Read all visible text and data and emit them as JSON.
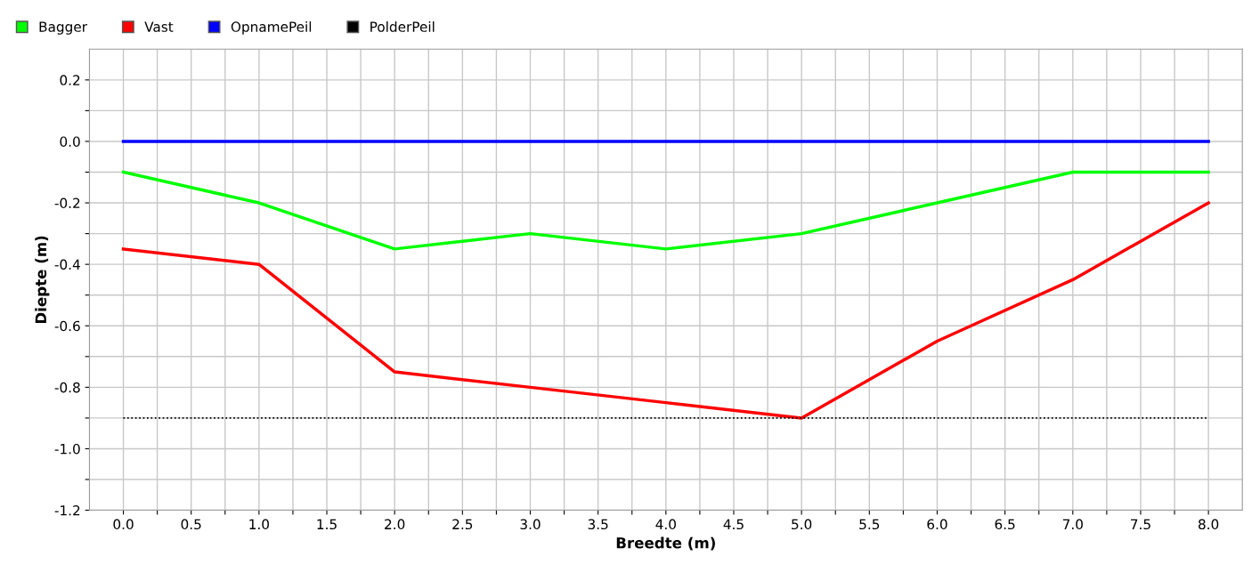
{
  "chart_data": {
    "type": "line",
    "xlabel": "Breedte (m)",
    "ylabel": "Diepte (m)",
    "x": [
      0,
      1,
      2,
      3,
      4,
      5,
      6,
      7,
      8
    ],
    "series": [
      {
        "name": "Bagger",
        "color": "#00ff00",
        "values": [
          -0.1,
          -0.2,
          -0.35,
          -0.3,
          -0.35,
          -0.3,
          -0.2,
          -0.1,
          -0.1
        ]
      },
      {
        "name": "Vast",
        "color": "#ff0000",
        "values": [
          -0.35,
          -0.4,
          -0.75,
          -0.8,
          -0.85,
          -0.9,
          -0.65,
          -0.45,
          -0.2
        ]
      },
      {
        "name": "OpnamePeil",
        "color": "#0000ff",
        "values": [
          0,
          0,
          0,
          0,
          0,
          0,
          0,
          0,
          0
        ]
      },
      {
        "name": "PolderPeil",
        "color": "#000000",
        "line_style": "dotted",
        "values": [
          -0.9,
          -0.9,
          -0.9,
          -0.9,
          -0.9,
          -0.9,
          -0.9,
          -0.9,
          -0.9
        ]
      }
    ],
    "xlim": [
      -0.25,
      8.25
    ],
    "ylim": [
      -1.2,
      0.3
    ],
    "xticks": [
      {
        "value": 0,
        "label": "0.0"
      },
      {
        "value": 0.25,
        "label": null
      },
      {
        "value": 0.5,
        "label": "0.5"
      },
      {
        "value": 0.75,
        "label": null
      },
      {
        "value": 1,
        "label": "1.0"
      },
      {
        "value": 1.25,
        "label": null
      },
      {
        "value": 1.5,
        "label": "1.5"
      },
      {
        "value": 1.75,
        "label": null
      },
      {
        "value": 2,
        "label": "2.0"
      },
      {
        "value": 2.25,
        "label": null
      },
      {
        "value": 2.5,
        "label": "2.5"
      },
      {
        "value": 2.75,
        "label": null
      },
      {
        "value": 3,
        "label": "3.0"
      },
      {
        "value": 3.25,
        "label": null
      },
      {
        "value": 3.5,
        "label": "3.5"
      },
      {
        "value": 3.75,
        "label": null
      },
      {
        "value": 4,
        "label": "4.0"
      },
      {
        "value": 4.25,
        "label": null
      },
      {
        "value": 4.5,
        "label": "4.5"
      },
      {
        "value": 4.75,
        "label": null
      },
      {
        "value": 5,
        "label": "5.0"
      },
      {
        "value": 5.25,
        "label": null
      },
      {
        "value": 5.5,
        "label": "5.5"
      },
      {
        "value": 5.75,
        "label": null
      },
      {
        "value": 6,
        "label": "6.0"
      },
      {
        "value": 6.25,
        "label": null
      },
      {
        "value": 6.5,
        "label": "6.5"
      },
      {
        "value": 6.75,
        "label": null
      },
      {
        "value": 7,
        "label": "7.0"
      },
      {
        "value": 7.25,
        "label": null
      },
      {
        "value": 7.5,
        "label": "7.5"
      },
      {
        "value": 7.75,
        "label": null
      },
      {
        "value": 8,
        "label": "8.0"
      }
    ],
    "yticks": [
      {
        "value": -1.2,
        "label": "-1.2"
      },
      {
        "value": -1.1,
        "label": null
      },
      {
        "value": -1.0,
        "label": "-1.0"
      },
      {
        "value": -0.9,
        "label": null
      },
      {
        "value": -0.8,
        "label": "-0.8"
      },
      {
        "value": -0.7,
        "label": null
      },
      {
        "value": -0.6,
        "label": "-0.6"
      },
      {
        "value": -0.5,
        "label": null
      },
      {
        "value": -0.4,
        "label": "-0.4"
      },
      {
        "value": -0.3,
        "label": null
      },
      {
        "value": -0.2,
        "label": "-0.2"
      },
      {
        "value": -0.1,
        "label": null
      },
      {
        "value": 0,
        "label": "0.0"
      },
      {
        "value": 0.1,
        "label": null
      },
      {
        "value": 0.2,
        "label": "0.2"
      }
    ],
    "grid": true,
    "legend": "top left",
    "marker": "none",
    "line_style": "solid"
  }
}
